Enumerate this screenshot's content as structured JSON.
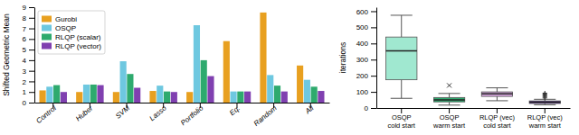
{
  "chart_data": [
    {
      "type": "bar",
      "categories": [
        "Control",
        "Huber",
        "SVM",
        "Lasso",
        "Portfolio",
        "Eq.",
        "Random",
        "All"
      ],
      "series": [
        {
          "name": "Gurobi",
          "color": "#e8a020",
          "values": [
            1.15,
            1.0,
            1.0,
            1.1,
            1.0,
            5.8,
            8.5,
            3.5
          ]
        },
        {
          "name": "OSQP",
          "color": "#6ec8e0",
          "values": [
            1.5,
            1.7,
            3.9,
            1.6,
            7.3,
            1.05,
            2.6,
            2.15
          ]
        },
        {
          "name": "RLQP (scalar)",
          "color": "#2eaa6e",
          "values": [
            1.65,
            1.7,
            2.7,
            1.05,
            4.0,
            1.05,
            1.6,
            1.5
          ]
        },
        {
          "name": "RLQP (vector)",
          "color": "#8040b0",
          "values": [
            1.0,
            1.65,
            1.4,
            1.0,
            2.5,
            1.05,
            1.05,
            1.1
          ]
        }
      ],
      "ylabel": "Shifted Geometric Mean",
      "ylim": [
        0,
        9
      ],
      "yticks": [
        0,
        1,
        2,
        3,
        4,
        5,
        6,
        7,
        8,
        9
      ],
      "legend": "upper-left"
    },
    {
      "type": "box",
      "categories": [
        "OSQP\ncold start",
        "OSQP\nwarm start",
        "RLQP (vec)\ncold start",
        "RLQP (vec)\nwarm start"
      ],
      "boxes": [
        {
          "color": "#a0e8d0",
          "marker": "plus",
          "q1": 175,
          "median": 355,
          "q3": 440,
          "whislo": 60,
          "whishi": 575,
          "fliers": []
        },
        {
          "color": "#2eaa6e",
          "marker": "x",
          "q1": 38,
          "median": 50,
          "q3": 65,
          "whislo": 18,
          "whishi": 90,
          "fliers": [
            140
          ]
        },
        {
          "color": "#d8a8e0",
          "marker": "plus",
          "q1": 72,
          "median": 88,
          "q3": 100,
          "whislo": 45,
          "whishi": 125,
          "fliers": []
        },
        {
          "color": "#6030a0",
          "marker": "plus",
          "q1": 28,
          "median": 36,
          "q3": 44,
          "whislo": 20,
          "whishi": 54,
          "fliers": [
            62,
            68,
            74,
            80,
            86,
            92
          ]
        }
      ],
      "ylabel": "iterations",
      "ylim": [
        0,
        625
      ],
      "yticks": [
        0,
        100,
        200,
        300,
        400,
        500,
        600
      ]
    }
  ]
}
